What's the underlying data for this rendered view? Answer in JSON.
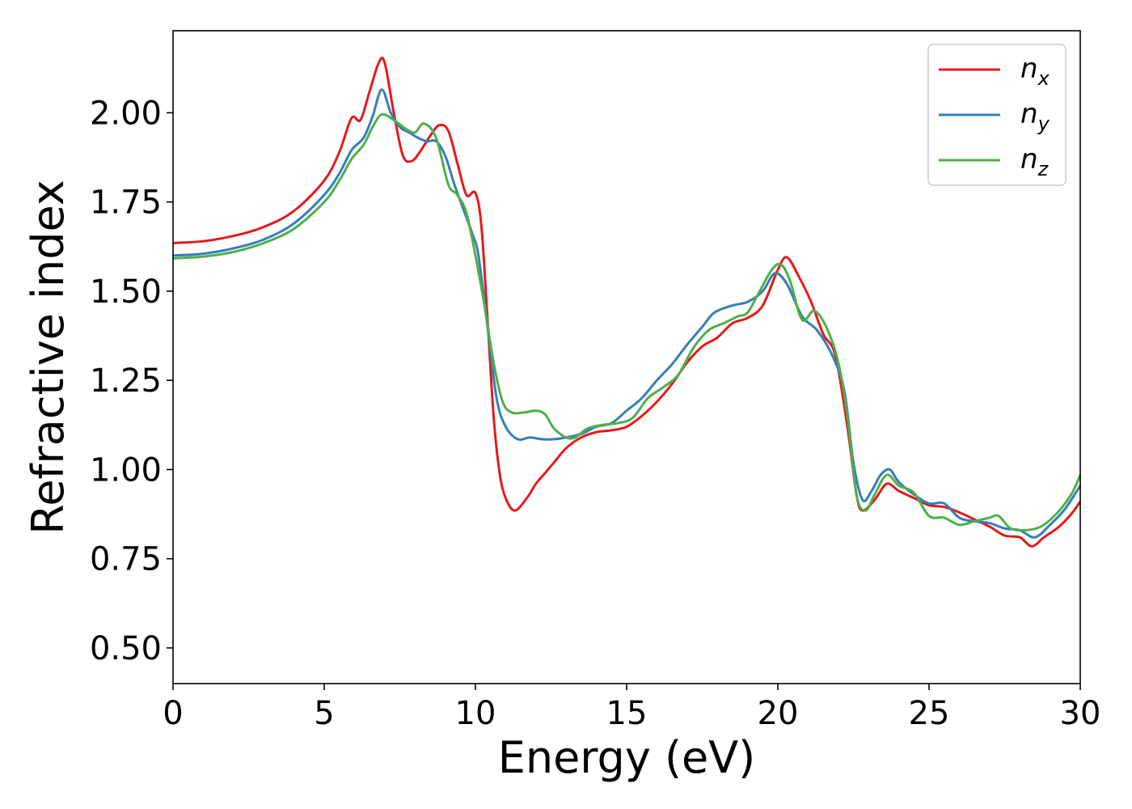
{
  "chart_data": {
    "type": "line",
    "xlabel": "Energy (eV)",
    "ylabel": "Refractive index",
    "xlim": [
      0,
      30
    ],
    "ylim": [
      0.4,
      2.23
    ],
    "xticks": [
      "0",
      "5",
      "10",
      "15",
      "20",
      "25",
      "30"
    ],
    "yticks": [
      "0.50",
      "0.75",
      "1.00",
      "1.25",
      "1.50",
      "1.75",
      "2.00"
    ],
    "grid": false,
    "legend_position": "top-right",
    "series": [
      {
        "name": "n",
        "subscript": "x",
        "color": "#e41a1c",
        "points": [
          [
            0,
            1.635
          ],
          [
            1,
            1.64
          ],
          [
            2,
            1.655
          ],
          [
            3,
            1.68
          ],
          [
            4,
            1.725
          ],
          [
            5,
            1.81
          ],
          [
            5.5,
            1.89
          ],
          [
            5.9,
            1.985
          ],
          [
            6.2,
            1.98
          ],
          [
            6.5,
            2.06
          ],
          [
            6.8,
            2.14
          ],
          [
            7.0,
            2.14
          ],
          [
            7.3,
            2.0
          ],
          [
            7.6,
            1.88
          ],
          [
            7.9,
            1.865
          ],
          [
            8.2,
            1.895
          ],
          [
            8.5,
            1.935
          ],
          [
            8.8,
            1.965
          ],
          [
            9.1,
            1.95
          ],
          [
            9.4,
            1.86
          ],
          [
            9.7,
            1.77
          ],
          [
            10.0,
            1.775
          ],
          [
            10.2,
            1.68
          ],
          [
            10.4,
            1.42
          ],
          [
            10.6,
            1.15
          ],
          [
            10.8,
            0.99
          ],
          [
            11.0,
            0.92
          ],
          [
            11.3,
            0.885
          ],
          [
            11.7,
            0.92
          ],
          [
            12.0,
            0.96
          ],
          [
            12.3,
            0.99
          ],
          [
            12.6,
            1.02
          ],
          [
            13.0,
            1.06
          ],
          [
            13.5,
            1.09
          ],
          [
            14.0,
            1.105
          ],
          [
            14.5,
            1.11
          ],
          [
            15.0,
            1.12
          ],
          [
            15.5,
            1.15
          ],
          [
            16.0,
            1.19
          ],
          [
            16.5,
            1.24
          ],
          [
            17.0,
            1.3
          ],
          [
            17.5,
            1.345
          ],
          [
            18.0,
            1.37
          ],
          [
            18.5,
            1.41
          ],
          [
            19.0,
            1.425
          ],
          [
            19.5,
            1.46
          ],
          [
            20.0,
            1.56
          ],
          [
            20.3,
            1.595
          ],
          [
            20.7,
            1.54
          ],
          [
            21.1,
            1.47
          ],
          [
            21.5,
            1.38
          ],
          [
            21.9,
            1.32
          ],
          [
            22.3,
            1.12
          ],
          [
            22.6,
            0.93
          ],
          [
            22.8,
            0.885
          ],
          [
            23.2,
            0.915
          ],
          [
            23.6,
            0.96
          ],
          [
            24.0,
            0.94
          ],
          [
            24.5,
            0.92
          ],
          [
            25.0,
            0.9
          ],
          [
            25.5,
            0.895
          ],
          [
            26.0,
            0.88
          ],
          [
            26.5,
            0.86
          ],
          [
            27.0,
            0.84
          ],
          [
            27.5,
            0.815
          ],
          [
            28.0,
            0.81
          ],
          [
            28.4,
            0.785
          ],
          [
            28.8,
            0.81
          ],
          [
            29.3,
            0.84
          ],
          [
            29.7,
            0.875
          ],
          [
            30.0,
            0.91
          ]
        ]
      },
      {
        "name": "n",
        "subscript": "y",
        "color": "#377eb8",
        "points": [
          [
            0,
            1.6
          ],
          [
            1,
            1.605
          ],
          [
            2,
            1.62
          ],
          [
            3,
            1.645
          ],
          [
            4,
            1.69
          ],
          [
            5,
            1.77
          ],
          [
            5.5,
            1.83
          ],
          [
            5.9,
            1.895
          ],
          [
            6.3,
            1.93
          ],
          [
            6.6,
            1.99
          ],
          [
            6.9,
            2.065
          ],
          [
            7.2,
            2.0
          ],
          [
            7.5,
            1.96
          ],
          [
            7.8,
            1.945
          ],
          [
            8.1,
            1.93
          ],
          [
            8.4,
            1.92
          ],
          [
            8.7,
            1.92
          ],
          [
            9.0,
            1.88
          ],
          [
            9.3,
            1.8
          ],
          [
            9.6,
            1.73
          ],
          [
            9.9,
            1.66
          ],
          [
            10.1,
            1.6
          ],
          [
            10.4,
            1.4
          ],
          [
            10.7,
            1.2
          ],
          [
            11.0,
            1.12
          ],
          [
            11.4,
            1.085
          ],
          [
            11.8,
            1.09
          ],
          [
            12.2,
            1.085
          ],
          [
            12.6,
            1.085
          ],
          [
            13.0,
            1.09
          ],
          [
            13.5,
            1.1
          ],
          [
            14.0,
            1.12
          ],
          [
            14.5,
            1.13
          ],
          [
            15.0,
            1.165
          ],
          [
            15.5,
            1.2
          ],
          [
            16.0,
            1.25
          ],
          [
            16.5,
            1.295
          ],
          [
            17.0,
            1.35
          ],
          [
            17.5,
            1.4
          ],
          [
            17.9,
            1.44
          ],
          [
            18.5,
            1.46
          ],
          [
            19.0,
            1.47
          ],
          [
            19.5,
            1.5
          ],
          [
            19.9,
            1.55
          ],
          [
            20.3,
            1.52
          ],
          [
            20.8,
            1.43
          ],
          [
            21.3,
            1.39
          ],
          [
            21.8,
            1.32
          ],
          [
            22.2,
            1.22
          ],
          [
            22.5,
            1.02
          ],
          [
            22.8,
            0.915
          ],
          [
            23.1,
            0.94
          ],
          [
            23.4,
            0.985
          ],
          [
            23.7,
            1.0
          ],
          [
            24.0,
            0.965
          ],
          [
            24.5,
            0.93
          ],
          [
            25.0,
            0.905
          ],
          [
            25.5,
            0.905
          ],
          [
            26.0,
            0.865
          ],
          [
            26.5,
            0.855
          ],
          [
            27.0,
            0.85
          ],
          [
            27.5,
            0.835
          ],
          [
            28.0,
            0.83
          ],
          [
            28.5,
            0.81
          ],
          [
            29.0,
            0.845
          ],
          [
            29.5,
            0.89
          ],
          [
            30.0,
            0.955
          ]
        ]
      },
      {
        "name": "n",
        "subscript": "z",
        "color": "#4daf4a",
        "points": [
          [
            0,
            1.592
          ],
          [
            1,
            1.597
          ],
          [
            2,
            1.61
          ],
          [
            3,
            1.635
          ],
          [
            4,
            1.675
          ],
          [
            5,
            1.75
          ],
          [
            5.5,
            1.81
          ],
          [
            5.9,
            1.87
          ],
          [
            6.3,
            1.91
          ],
          [
            6.6,
            1.96
          ],
          [
            6.9,
            1.995
          ],
          [
            7.3,
            1.98
          ],
          [
            7.7,
            1.955
          ],
          [
            8.0,
            1.945
          ],
          [
            8.3,
            1.97
          ],
          [
            8.7,
            1.93
          ],
          [
            9.1,
            1.8
          ],
          [
            9.4,
            1.77
          ],
          [
            9.7,
            1.72
          ],
          [
            10.0,
            1.6
          ],
          [
            10.3,
            1.46
          ],
          [
            10.6,
            1.3
          ],
          [
            10.9,
            1.19
          ],
          [
            11.2,
            1.16
          ],
          [
            11.6,
            1.16
          ],
          [
            12.0,
            1.165
          ],
          [
            12.3,
            1.155
          ],
          [
            12.6,
            1.115
          ],
          [
            13.0,
            1.09
          ],
          [
            13.3,
            1.09
          ],
          [
            13.7,
            1.115
          ],
          [
            14.2,
            1.125
          ],
          [
            14.7,
            1.13
          ],
          [
            15.2,
            1.145
          ],
          [
            15.7,
            1.2
          ],
          [
            16.2,
            1.23
          ],
          [
            16.7,
            1.265
          ],
          [
            17.2,
            1.34
          ],
          [
            17.7,
            1.39
          ],
          [
            18.2,
            1.41
          ],
          [
            18.7,
            1.43
          ],
          [
            19.0,
            1.44
          ],
          [
            19.4,
            1.5
          ],
          [
            19.8,
            1.56
          ],
          [
            20.1,
            1.575
          ],
          [
            20.4,
            1.53
          ],
          [
            20.8,
            1.42
          ],
          [
            21.2,
            1.445
          ],
          [
            21.6,
            1.4
          ],
          [
            22.0,
            1.3
          ],
          [
            22.3,
            1.15
          ],
          [
            22.6,
            0.93
          ],
          [
            22.9,
            0.885
          ],
          [
            23.2,
            0.93
          ],
          [
            23.6,
            0.985
          ],
          [
            24.0,
            0.955
          ],
          [
            24.5,
            0.935
          ],
          [
            25.0,
            0.87
          ],
          [
            25.5,
            0.865
          ],
          [
            26.0,
            0.845
          ],
          [
            26.5,
            0.855
          ],
          [
            27.0,
            0.865
          ],
          [
            27.3,
            0.87
          ],
          [
            27.7,
            0.835
          ],
          [
            28.2,
            0.83
          ],
          [
            28.7,
            0.84
          ],
          [
            29.2,
            0.875
          ],
          [
            29.7,
            0.93
          ],
          [
            30.0,
            0.985
          ]
        ]
      }
    ]
  }
}
